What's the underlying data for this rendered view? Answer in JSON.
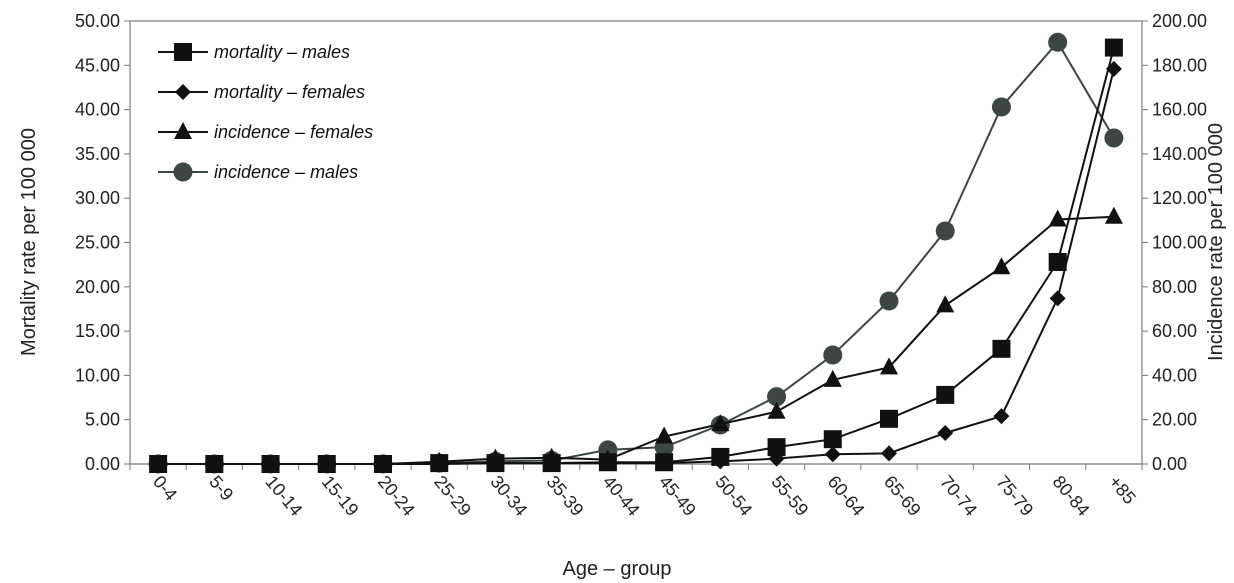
{
  "chart_data": {
    "type": "line",
    "xlabel": "Age – group",
    "ylabel": "Mortality rate per 100 000",
    "y2label": "Incidence rate per 100 000",
    "ylim": [
      0,
      50
    ],
    "y2lim": [
      0,
      200
    ],
    "yticks": [
      "0.00",
      "5.00",
      "10.00",
      "15.00",
      "20.00",
      "25.00",
      "30.00",
      "35.00",
      "40.00",
      "45.00",
      "50.00"
    ],
    "y2ticks": [
      "0.00",
      "20.00",
      "40.00",
      "60.00",
      "80.00",
      "100.00",
      "120.00",
      "140.00",
      "160.00",
      "180.00",
      "200.00"
    ],
    "categories": [
      "0-4",
      "5-9",
      "10-14",
      "15-19",
      "20-24",
      "25-29",
      "30-34",
      "35-39",
      "40-44",
      "45-49",
      "50-54",
      "55-59",
      "60-64",
      "65-69",
      "70-74",
      "75-79",
      "80-84",
      "+85"
    ],
    "legend_position": "top-left",
    "grid": false,
    "series": [
      {
        "name": "mortality – males",
        "axis": "left",
        "marker": "square",
        "color": "#111111",
        "values": [
          0,
          0,
          0,
          0,
          0,
          0.1,
          0.1,
          0.1,
          0.2,
          0.2,
          0.8,
          1.9,
          2.8,
          5.1,
          7.8,
          13.0,
          22.8,
          47.0
        ]
      },
      {
        "name": "mortality – females",
        "axis": "left",
        "marker": "diamond",
        "color": "#111111",
        "values": [
          0,
          0,
          0,
          0,
          0,
          0,
          0.1,
          0.1,
          0.1,
          0.1,
          0.3,
          0.6,
          1.1,
          1.2,
          3.5,
          5.4,
          18.7,
          44.6
        ]
      },
      {
        "name": "incidence – females",
        "axis": "right",
        "marker": "triangle",
        "color": "#111111",
        "values": [
          0,
          0,
          0,
          0,
          0,
          1.0,
          2.4,
          2.8,
          2.0,
          12.4,
          18.0,
          23.6,
          38.0,
          43.6,
          71.6,
          88.8,
          110.4,
          111.6
        ]
      },
      {
        "name": "incidence – males",
        "axis": "right",
        "marker": "circle",
        "color": "#3c4644",
        "values": [
          0,
          0,
          0,
          0,
          0,
          0.4,
          1.2,
          1.6,
          6.4,
          7.6,
          17.6,
          30.4,
          49.2,
          73.6,
          105.2,
          161.2,
          190.4,
          147.2
        ]
      }
    ]
  }
}
